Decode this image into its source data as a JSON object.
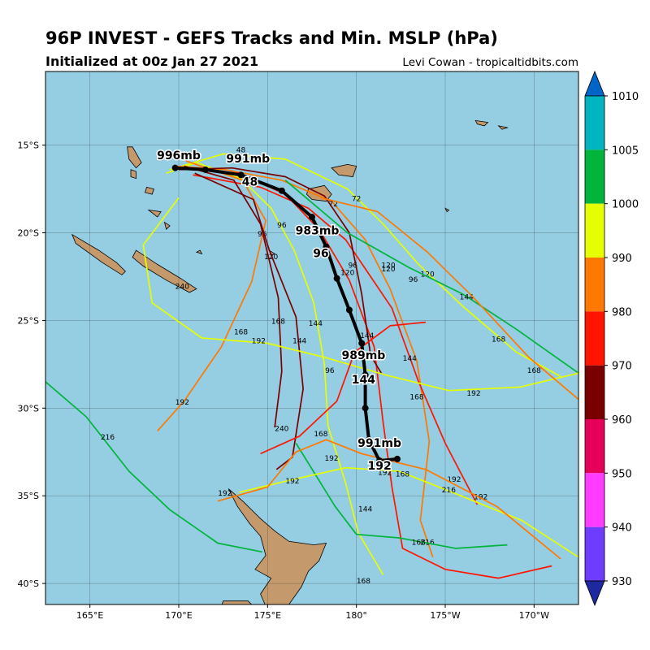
{
  "header": {
    "title": "96P INVEST - GEFS Tracks and Min. MSLP (hPa)",
    "subtitle": "Initialized at 00z Jan 27 2021",
    "credit": "Levi Cowan - tropicaltidbits.com"
  },
  "map": {
    "lon_range": [
      162.5,
      192.5
    ],
    "lat_range": [
      -41.2,
      -10.8
    ],
    "lon_ticks": [
      "165°E",
      "170°E",
      "175°E",
      "180°",
      "175°W",
      "170°W"
    ],
    "lat_ticks": [
      "15°S",
      "20°S",
      "25°S",
      "30°S",
      "35°S",
      "40°S"
    ],
    "ocean_color": "#95cde2",
    "land_color": "#c49a6c"
  },
  "colorbar": {
    "ticks": [
      "1010",
      "1005",
      "1000",
      "990",
      "980",
      "970",
      "960",
      "950",
      "940",
      "930"
    ],
    "colors": [
      "#0064c8",
      "#00b4c0",
      "#00b43c",
      "#e6ff00",
      "#ff7800",
      "#ff1400",
      "#780000",
      "#e6005a",
      "#ff3cff",
      "#6e3cff",
      "#1e28a0"
    ]
  },
  "mean_track": {
    "color": "#000000",
    "points": [
      {
        "lon": 169.8,
        "lat": -16.3
      },
      {
        "lon": 171.5,
        "lat": -16.4
      },
      {
        "lon": 173.5,
        "lat": -16.7
      },
      {
        "lon": 175.8,
        "lat": -17.6
      },
      {
        "lon": 177.5,
        "lat": -19.1
      },
      {
        "lon": 178.3,
        "lat": -20.8
      },
      {
        "lon": 178.9,
        "lat": -22.6
      },
      {
        "lon": 179.6,
        "lat": -24.4
      },
      {
        "lon": 180.3,
        "lat": -26.3
      },
      {
        "lon": 180.5,
        "lat": -28.1
      },
      {
        "lon": 180.5,
        "lat": -30.0
      },
      {
        "lon": 180.7,
        "lat": -31.8
      },
      {
        "lon": 181.3,
        "lat": -33.0
      },
      {
        "lon": 182.3,
        "lat": -32.9
      }
    ],
    "labels": [
      {
        "text": "996mb",
        "lon": 170.0,
        "lat": -15.8
      },
      {
        "text": "991mb",
        "lon": 173.9,
        "lat": -16.0
      },
      {
        "text": "48",
        "lon": 174.0,
        "lat": -17.3
      },
      {
        "text": "983mb",
        "lon": 177.8,
        "lat": -20.1
      },
      {
        "text": "96",
        "lon": 178.0,
        "lat": -21.4
      },
      {
        "text": "989mb",
        "lon": 180.4,
        "lat": -27.2
      },
      {
        "text": "144",
        "lon": 180.4,
        "lat": -28.6
      },
      {
        "text": "991mb",
        "lon": 181.3,
        "lat": -32.2
      },
      {
        "text": "192",
        "lon": 181.3,
        "lat": -33.5
      }
    ]
  },
  "member_tracks": [
    {
      "color": "#e6ff00",
      "points": [
        [
          169.5,
          -16.4
        ],
        [
          172.5,
          -15.5
        ],
        [
          176,
          -15.8
        ],
        [
          179.5,
          -17.5
        ],
        [
          181.5,
          -19.5
        ],
        [
          183.5,
          -21.8
        ],
        [
          186,
          -24.2
        ],
        [
          189,
          -26.8
        ],
        [
          191.5,
          -28.2
        ]
      ],
      "labels": [
        [
          "48",
          173.5,
          -15.4
        ],
        [
          "72",
          180,
          -18.2
        ],
        [
          "120",
          184,
          -22.5
        ],
        [
          "168",
          188,
          -26.2
        ]
      ]
    },
    {
      "color": "#e6ff00",
      "points": [
        [
          169.3,
          -16.6
        ],
        [
          171,
          -16.0
        ],
        [
          173.5,
          -16.9
        ],
        [
          175.2,
          -18.6
        ],
        [
          176.5,
          -21
        ],
        [
          177.6,
          -24
        ],
        [
          178.2,
          -27.5
        ],
        [
          178.4,
          -31
        ],
        [
          179.4,
          -34.3
        ],
        [
          180.1,
          -37.1
        ],
        [
          181.5,
          -39.5
        ]
      ],
      "labels": [
        [
          "96",
          175.8,
          -19.7
        ],
        [
          "144",
          177.7,
          -25.3
        ],
        [
          "192",
          178.6,
          -33
        ],
        [
          "168",
          180.4,
          -40
        ]
      ]
    },
    {
      "color": "#ff7800",
      "points": [
        [
          169.8,
          -16.2
        ],
        [
          172.6,
          -16.4
        ],
        [
          175.8,
          -17.0
        ],
        [
          178.6,
          -18.2
        ],
        [
          180.5,
          -20.4
        ],
        [
          181.9,
          -23.2
        ],
        [
          183.4,
          -27.3
        ],
        [
          184.1,
          -31.9
        ],
        [
          183.6,
          -36.4
        ],
        [
          184.3,
          -38.5
        ]
      ],
      "labels": [
        [
          "72",
          178.7,
          -18.5
        ],
        [
          "120",
          181.8,
          -22.2
        ],
        [
          "168",
          183.4,
          -29.5
        ],
        [
          "216",
          184,
          -37.8
        ]
      ]
    },
    {
      "color": "#ff7800",
      "points": [
        [
          170.4,
          -15.9
        ],
        [
          173.6,
          -17.0
        ],
        [
          174.9,
          -19.3
        ],
        [
          174.1,
          -22.8
        ],
        [
          172.4,
          -26.5
        ],
        [
          170.3,
          -29.6
        ],
        [
          168.8,
          -31.3
        ]
      ],
      "labels": [
        [
          "96",
          174.7,
          -20.2
        ],
        [
          "168",
          173.5,
          -25.8
        ],
        [
          "192",
          170.2,
          -29.8
        ]
      ]
    },
    {
      "color": "#ff1400",
      "points": [
        [
          170.2,
          -16.3
        ],
        [
          173.4,
          -16.6
        ],
        [
          176.0,
          -17.8
        ],
        [
          177.9,
          -19.8
        ],
        [
          179.6,
          -22.7
        ],
        [
          181.0,
          -26.5
        ],
        [
          181.5,
          -30.8
        ],
        [
          182.0,
          -34.5
        ],
        [
          182.6,
          -38.0
        ],
        [
          185.0,
          -39.2
        ],
        [
          188.0,
          -39.7
        ],
        [
          191.0,
          -39.0
        ]
      ],
      "labels": [
        [
          "120",
          179.5,
          -22.4
        ],
        [
          "192",
          181.6,
          -33.8
        ]
      ]
    },
    {
      "color": "#ff1400",
      "points": [
        [
          170.8,
          -16.7
        ],
        [
          174.6,
          -17.4
        ],
        [
          177.3,
          -18.6
        ],
        [
          179.4,
          -20.4
        ],
        [
          180.6,
          -22.2
        ],
        [
          182.0,
          -24.3
        ],
        [
          183.5,
          -28.5
        ],
        [
          185.0,
          -32.0
        ],
        [
          186.8,
          -35.5
        ]
      ],
      "labels": [
        [
          "96",
          179.8,
          -22.0
        ],
        [
          "144",
          183.0,
          -27.3
        ],
        [
          "192",
          185.5,
          -34.2
        ]
      ]
    },
    {
      "color": "#780000",
      "points": [
        [
          170.0,
          -16.4
        ],
        [
          173.0,
          -16.3
        ],
        [
          176.0,
          -16.8
        ],
        [
          178.2,
          -17.9
        ],
        [
          179.6,
          -20.0
        ],
        [
          180.3,
          -23.5
        ],
        [
          180.8,
          -27.0
        ],
        [
          181.4,
          -28.0
        ]
      ],
      "labels": [
        [
          "144",
          180.6,
          -26.0
        ]
      ]
    },
    {
      "color": "#780000",
      "points": [
        [
          170.3,
          -16.2
        ],
        [
          173.1,
          -17.0
        ],
        [
          174.6,
          -19.5
        ],
        [
          175.6,
          -23.7
        ],
        [
          175.8,
          -27.9
        ],
        [
          175.4,
          -31.1
        ]
      ],
      "labels": [
        [
          "120",
          175.2,
          -21.5
        ],
        [
          "168",
          175.6,
          -25.2
        ]
      ]
    },
    {
      "color": "#780000",
      "points": [
        [
          170.9,
          -16.6
        ],
        [
          174.2,
          -18.1
        ],
        [
          175.1,
          -21.0
        ],
        [
          176.6,
          -24.8
        ],
        [
          177.0,
          -28.9
        ],
        [
          176.4,
          -32.8
        ],
        [
          175.5,
          -33.5
        ]
      ],
      "labels": [
        [
          "144",
          176.8,
          -26.3
        ]
      ]
    },
    {
      "color": "#00b43c",
      "points": [
        [
          176.0,
          -17.0
        ],
        [
          179.5,
          -20.0
        ],
        [
          183.0,
          -22.0
        ],
        [
          186.0,
          -23.5
        ],
        [
          189.0,
          -25.5
        ],
        [
          192.5,
          -28.0
        ]
      ],
      "labels": [
        [
          "96",
          183.2,
          -22.8
        ],
        [
          "144",
          186.2,
          -23.8
        ]
      ]
    },
    {
      "color": "#00b43c",
      "points": [
        [
          162.5,
          -28.5
        ],
        [
          164.8,
          -30.5
        ],
        [
          167.2,
          -33.6
        ],
        [
          169.5,
          -35.8
        ],
        [
          172.2,
          -37.7
        ],
        [
          174.7,
          -38.2
        ]
      ],
      "labels": [
        [
          "216",
          166.0,
          -31.8
        ]
      ]
    },
    {
      "color": "#00b43c",
      "points": [
        [
          176.6,
          -32.0
        ],
        [
          178.8,
          -35.6
        ],
        [
          180.0,
          -37.2
        ],
        [
          182.4,
          -37.4
        ],
        [
          185.6,
          -38.0
        ],
        [
          188.5,
          -37.8
        ]
      ],
      "labels": [
        [
          "144",
          180.5,
          -35.9
        ],
        [
          "168",
          183.5,
          -37.8
        ]
      ]
    },
    {
      "color": "#e6ff00",
      "points": [
        [
          170.0,
          -18.0
        ],
        [
          168.0,
          -20.7
        ],
        [
          168.5,
          -24.0
        ],
        [
          171.3,
          -26.0
        ],
        [
          175.0,
          -26.3
        ],
        [
          178.2,
          -27.1
        ],
        [
          181.6,
          -28.1
        ],
        [
          185.2,
          -29.0
        ],
        [
          189.2,
          -28.8
        ],
        [
          192.5,
          -28.0
        ]
      ],
      "labels": [
        [
          "240",
          170.2,
          -23.2
        ],
        [
          "192",
          174.5,
          -26.3
        ],
        [
          "192",
          186.6,
          -29.3
        ]
      ]
    },
    {
      "color": "#ff7800",
      "points": [
        [
          178.0,
          -18.0
        ],
        [
          181.2,
          -18.8
        ],
        [
          184.0,
          -21.1
        ],
        [
          186.5,
          -23.6
        ],
        [
          189.7,
          -27.1
        ],
        [
          192.5,
          -29.5
        ]
      ],
      "labels": [
        [
          "120",
          181.8,
          -22.0
        ],
        [
          "168",
          190.0,
          -28.0
        ]
      ]
    },
    {
      "color": "#e6ff00",
      "points": [
        [
          173.4,
          -34.8
        ],
        [
          176.3,
          -34.1
        ],
        [
          179.4,
          -33.4
        ],
        [
          182.4,
          -33.6
        ],
        [
          185.4,
          -34.8
        ],
        [
          189.3,
          -36.4
        ],
        [
          192.5,
          -38.5
        ]
      ],
      "labels": [
        [
          "192",
          176.4,
          -34.3
        ],
        [
          "168",
          182.6,
          -33.9
        ],
        [
          "192",
          187.0,
          -35.2
        ]
      ]
    },
    {
      "color": "#ff1400",
      "points": [
        [
          174.6,
          -32.6
        ],
        [
          176.8,
          -31.6
        ],
        [
          178.9,
          -29.6
        ],
        [
          179.9,
          -26.8
        ],
        [
          181.9,
          -25.3
        ],
        [
          183.9,
          -25.1
        ]
      ],
      "labels": [
        [
          "240",
          175.8,
          -31.3
        ],
        [
          "96",
          178.5,
          -28.0
        ]
      ]
    },
    {
      "color": "#ff7800",
      "points": [
        [
          172.2,
          -35.3
        ],
        [
          175.0,
          -34.5
        ],
        [
          176.6,
          -32.5
        ],
        [
          178.3,
          -31.8
        ],
        [
          180.3,
          -32.6
        ],
        [
          183.9,
          -33.5
        ],
        [
          187.9,
          -35.6
        ],
        [
          191.5,
          -38.6
        ]
      ],
      "labels": [
        [
          "192",
          172.6,
          -35.0
        ],
        [
          "168",
          178.0,
          -31.6
        ],
        [
          "216",
          185.2,
          -34.8
        ]
      ]
    }
  ]
}
